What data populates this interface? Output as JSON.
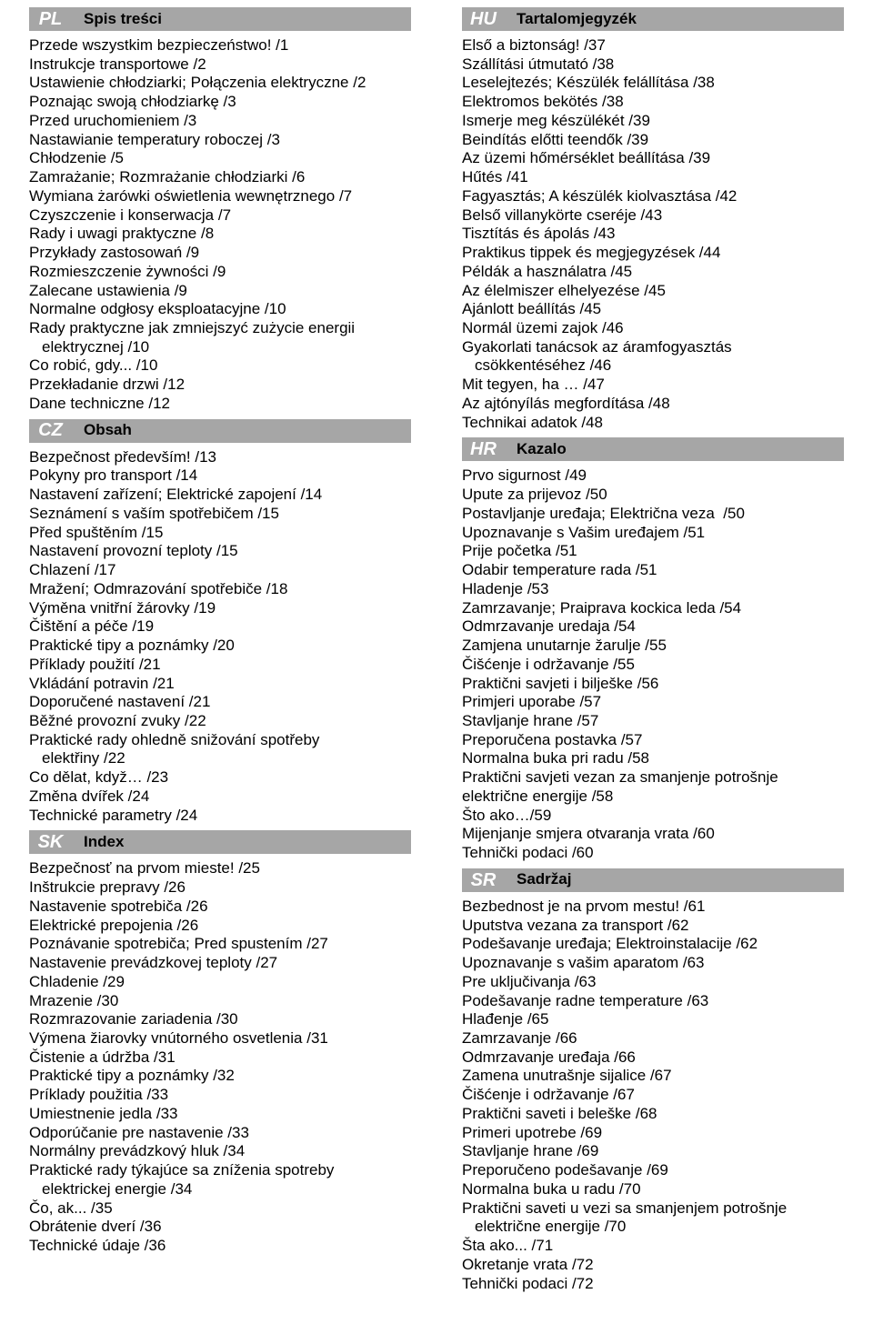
{
  "sections_left": [
    {
      "code": "PL",
      "title": "Spis treści",
      "items": [
        {
          "t": "Przede wszystkim bezpieczeństwo! /1"
        },
        {
          "t": "Instrukcje transportowe /2"
        },
        {
          "t": "Ustawienie chłodziarki; Połączenia elektryczne /2"
        },
        {
          "t": "Poznając swoją chłodziarkę /3"
        },
        {
          "t": "Przed uruchomieniem /3"
        },
        {
          "t": "Nastawianie temperatury roboczej /3"
        },
        {
          "t": "Chłodzenie /5"
        },
        {
          "t": "Zamrażanie; Rozmrażanie chłodziarki /6"
        },
        {
          "t": "Wymiana żarówki oświetlenia wewnętrznego /7"
        },
        {
          "t": "Czyszczenie i konserwacja /7"
        },
        {
          "t": "Rady i uwagi praktyczne /8"
        },
        {
          "t": "Przykłady zastosowań /9"
        },
        {
          "t": "Rozmieszczenie żywności /9"
        },
        {
          "t": "Zalecane ustawienia /9"
        },
        {
          "t": "Normalne odgłosy eksploatacyjne /10"
        },
        {
          "t": "Rady praktyczne jak zmniejszyć zużycie energii"
        },
        {
          "t": "elektrycznej /10",
          "indent": true
        },
        {
          "t": "Co robić, gdy... /10"
        },
        {
          "t": "Przekładanie drzwi /12"
        },
        {
          "t": "Dane techniczne /12"
        }
      ]
    },
    {
      "code": "CZ",
      "title": "Obsah",
      "items": [
        {
          "t": "Bezpečnost především! /13"
        },
        {
          "t": "Pokyny pro transport /14"
        },
        {
          "t": "Nastavení zařízení; Elektrické zapojení /14"
        },
        {
          "t": "Seznámení s vaším spotřebičem /15"
        },
        {
          "t": "Před spuštěním /15"
        },
        {
          "t": "Nastavení provozní teploty /15"
        },
        {
          "t": "Chlazení /17"
        },
        {
          "t": "Mražení; Odmrazování spotřebiče /18"
        },
        {
          "t": "Výměna vnitřní žárovky /19"
        },
        {
          "t": "Čištění a péče /19"
        },
        {
          "t": "Praktické tipy a poznámky /20"
        },
        {
          "t": "Příklady použití /21"
        },
        {
          "t": "Vkládání potravin /21"
        },
        {
          "t": "Doporučené nastavení /21"
        },
        {
          "t": "Běžné provozní zvuky /22"
        },
        {
          "t": "Praktické rady ohledně snižování spotřeby"
        },
        {
          "t": "elektřiny /22",
          "indent": true
        },
        {
          "t": "Co dělat, když… /23"
        },
        {
          "t": "Změna dvířek /24"
        },
        {
          "t": "Technické parametry /24"
        }
      ]
    },
    {
      "code": "SK",
      "title": "Index",
      "items": [
        {
          "t": "Bezpečnosť na prvom mieste! /25"
        },
        {
          "t": "Inštrukcie prepravy /26"
        },
        {
          "t": "Nastavenie spotrebiča /26"
        },
        {
          "t": "Elektrické prepojenia /26"
        },
        {
          "t": "Poznávanie spotrebiča; Pred spustením /27"
        },
        {
          "t": "Nastavenie prevádzkovej teploty /27"
        },
        {
          "t": "Chladenie /29"
        },
        {
          "t": "Mrazenie /30"
        },
        {
          "t": "Rozmrazovanie zariadenia /30"
        },
        {
          "t": "Výmena žiarovky vnútorného osvetlenia /31"
        },
        {
          "t": "Čistenie a údržba /31"
        },
        {
          "t": "Praktické tipy a poznámky /32"
        },
        {
          "t": "Príklady použitia /33"
        },
        {
          "t": "Umiestnenie jedla /33"
        },
        {
          "t": "Odporúčanie pre nastavenie /33"
        },
        {
          "t": "Normálny prevádzkový hluk /34"
        },
        {
          "t": "Praktické rady týkajúce sa zníženia spotreby"
        },
        {
          "t": "elektrickej energie /34",
          "indent": true
        },
        {
          "t": "Čo, ak... /35"
        },
        {
          "t": "Obrátenie dverí /36"
        },
        {
          "t": "Technické údaje /36"
        }
      ]
    }
  ],
  "sections_right": [
    {
      "code": "HU",
      "title": "Tartalomjegyzék",
      "items": [
        {
          "t": "Első a biztonság! /37"
        },
        {
          "t": "Szállítási útmutató /38"
        },
        {
          "t": "Leselejtezés; Készülék felállítása /38"
        },
        {
          "t": "Elektromos bekötés /38"
        },
        {
          "t": "Ismerje meg készülékét /39"
        },
        {
          "t": "Beindítás előtti teendők /39"
        },
        {
          "t": "Az üzemi hőmérséklet beállítása /39"
        },
        {
          "t": "Hűtés /41"
        },
        {
          "t": "Fagyasztás; A készülék kiolvasztása /42"
        },
        {
          "t": "Belső villanykörte cseréje /43"
        },
        {
          "t": "Tisztítás és ápolás /43"
        },
        {
          "t": "Praktikus tippek és megjegyzések /44"
        },
        {
          "t": "Példák a használatra /45"
        },
        {
          "t": "Az élelmiszer elhelyezése /45"
        },
        {
          "t": "Ajánlott beállítás /45"
        },
        {
          "t": "Normál üzemi zajok /46"
        },
        {
          "t": "Gyakorlati tanácsok az áramfogyasztás"
        },
        {
          "t": "csökkentéséhez /46",
          "indent": true
        },
        {
          "t": "Mit tegyen, ha … /47"
        },
        {
          "t": "Az ajtónyílás megfordítása /48"
        },
        {
          "t": "Technikai adatok /48"
        }
      ]
    },
    {
      "code": "HR",
      "title": "Kazalo",
      "items": [
        {
          "t": "Prvo sigurnost /49"
        },
        {
          "t": "Upute za prijevoz /50"
        },
        {
          "t": "Postavljanje uređaja; Električna veza  /50"
        },
        {
          "t": "Upoznavanje s Vašim uređajem /51"
        },
        {
          "t": "Prije početka /51"
        },
        {
          "t": "Odabir temperature rada /51"
        },
        {
          "t": "Hladenje /53"
        },
        {
          "t": "Zamrzavanje; Praiprava kockica leda /54"
        },
        {
          "t": "Odmrzavanje uredaja /54"
        },
        {
          "t": "Zamjena unutarnje žarulje /55"
        },
        {
          "t": "Čišćenje i održavanje /55"
        },
        {
          "t": "Praktični savjeti i bilješke /56"
        },
        {
          "t": "Primjeri uporabe /57"
        },
        {
          "t": "Stavljanje hrane /57"
        },
        {
          "t": "Preporučena postavka /57"
        },
        {
          "t": "Normalna buka pri radu /58"
        },
        {
          "t": "Praktični savjeti vezan za smanjenje potrošnje"
        },
        {
          "t": "električne energije /58"
        },
        {
          "t": "Što ako…/59"
        },
        {
          "t": "Mijenjanje smjera otvaranja vrata /60"
        },
        {
          "t": "Tehnički podaci /60"
        }
      ]
    },
    {
      "code": "SR",
      "title": "Sadržaj",
      "items": [
        {
          "t": "Bezbednost je na prvom mestu! /61"
        },
        {
          "t": "Uputstva vezana za transport /62"
        },
        {
          "t": "Podešavanje uređaja; Elektroinstalacije /62"
        },
        {
          "t": "Upoznavanje s vašim aparatom /63"
        },
        {
          "t": "Pre uključivanja /63"
        },
        {
          "t": "Podešavanje radne temperature /63"
        },
        {
          "t": "Hlađenje /65"
        },
        {
          "t": "Zamrzavanje /66"
        },
        {
          "t": "Odmrzavanje uređaja /66"
        },
        {
          "t": "Zamena unutrašnje sijalice /67"
        },
        {
          "t": "Čišćenje i održavanje /67"
        },
        {
          "t": "Praktični saveti i beleške /68"
        },
        {
          "t": "Primeri upotrebe /69"
        },
        {
          "t": "Stavljanje hrane /69"
        },
        {
          "t": "Preporučeno podešavanje /69"
        },
        {
          "t": "Normalna buka u radu /70"
        },
        {
          "t": "Praktični saveti u vezi sa smanjenjem potrošnje"
        },
        {
          "t": "električne energije /70",
          "indent": true
        },
        {
          "t": "Šta ako... /71"
        },
        {
          "t": "Okretanje vrata /72"
        },
        {
          "t": "Tehnički podaci /72"
        }
      ]
    }
  ]
}
